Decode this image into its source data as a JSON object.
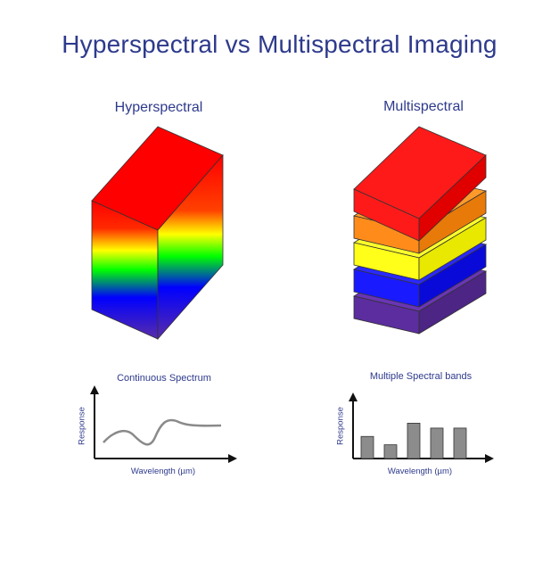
{
  "title": "Hyperspectral vs Multispectral Imaging",
  "hyperspectral": {
    "title": "Hyperspectral",
    "cube_gradient": [
      "#ff0000",
      "#ffff00",
      "#00ff00",
      "#0000ff",
      "#5a2da8"
    ],
    "plot": {
      "title": "Continuous Spectrum",
      "xlabel": "Wavelength (µm)",
      "ylabel": "Response",
      "line_color": "#8a8a8a"
    }
  },
  "multispectral": {
    "title": "Multispectral",
    "layers": [
      {
        "name": "red",
        "color": "#ff1a1a"
      },
      {
        "name": "orange",
        "color": "#ff8c1a"
      },
      {
        "name": "yellow",
        "color": "#ffff1a"
      },
      {
        "name": "blue",
        "color": "#1a1aff"
      },
      {
        "name": "purple",
        "color": "#5b2d9e"
      }
    ],
    "plot": {
      "title": "Multiple Spectral bands",
      "xlabel": "Wavelength (µm)",
      "ylabel": "Response",
      "bar_color": "#8c8c8c",
      "bar_values": [
        0.45,
        0.28,
        0.72,
        0.62,
        0.62
      ]
    }
  },
  "colors": {
    "text": "#2e3a8c",
    "axis": "#111111"
  }
}
